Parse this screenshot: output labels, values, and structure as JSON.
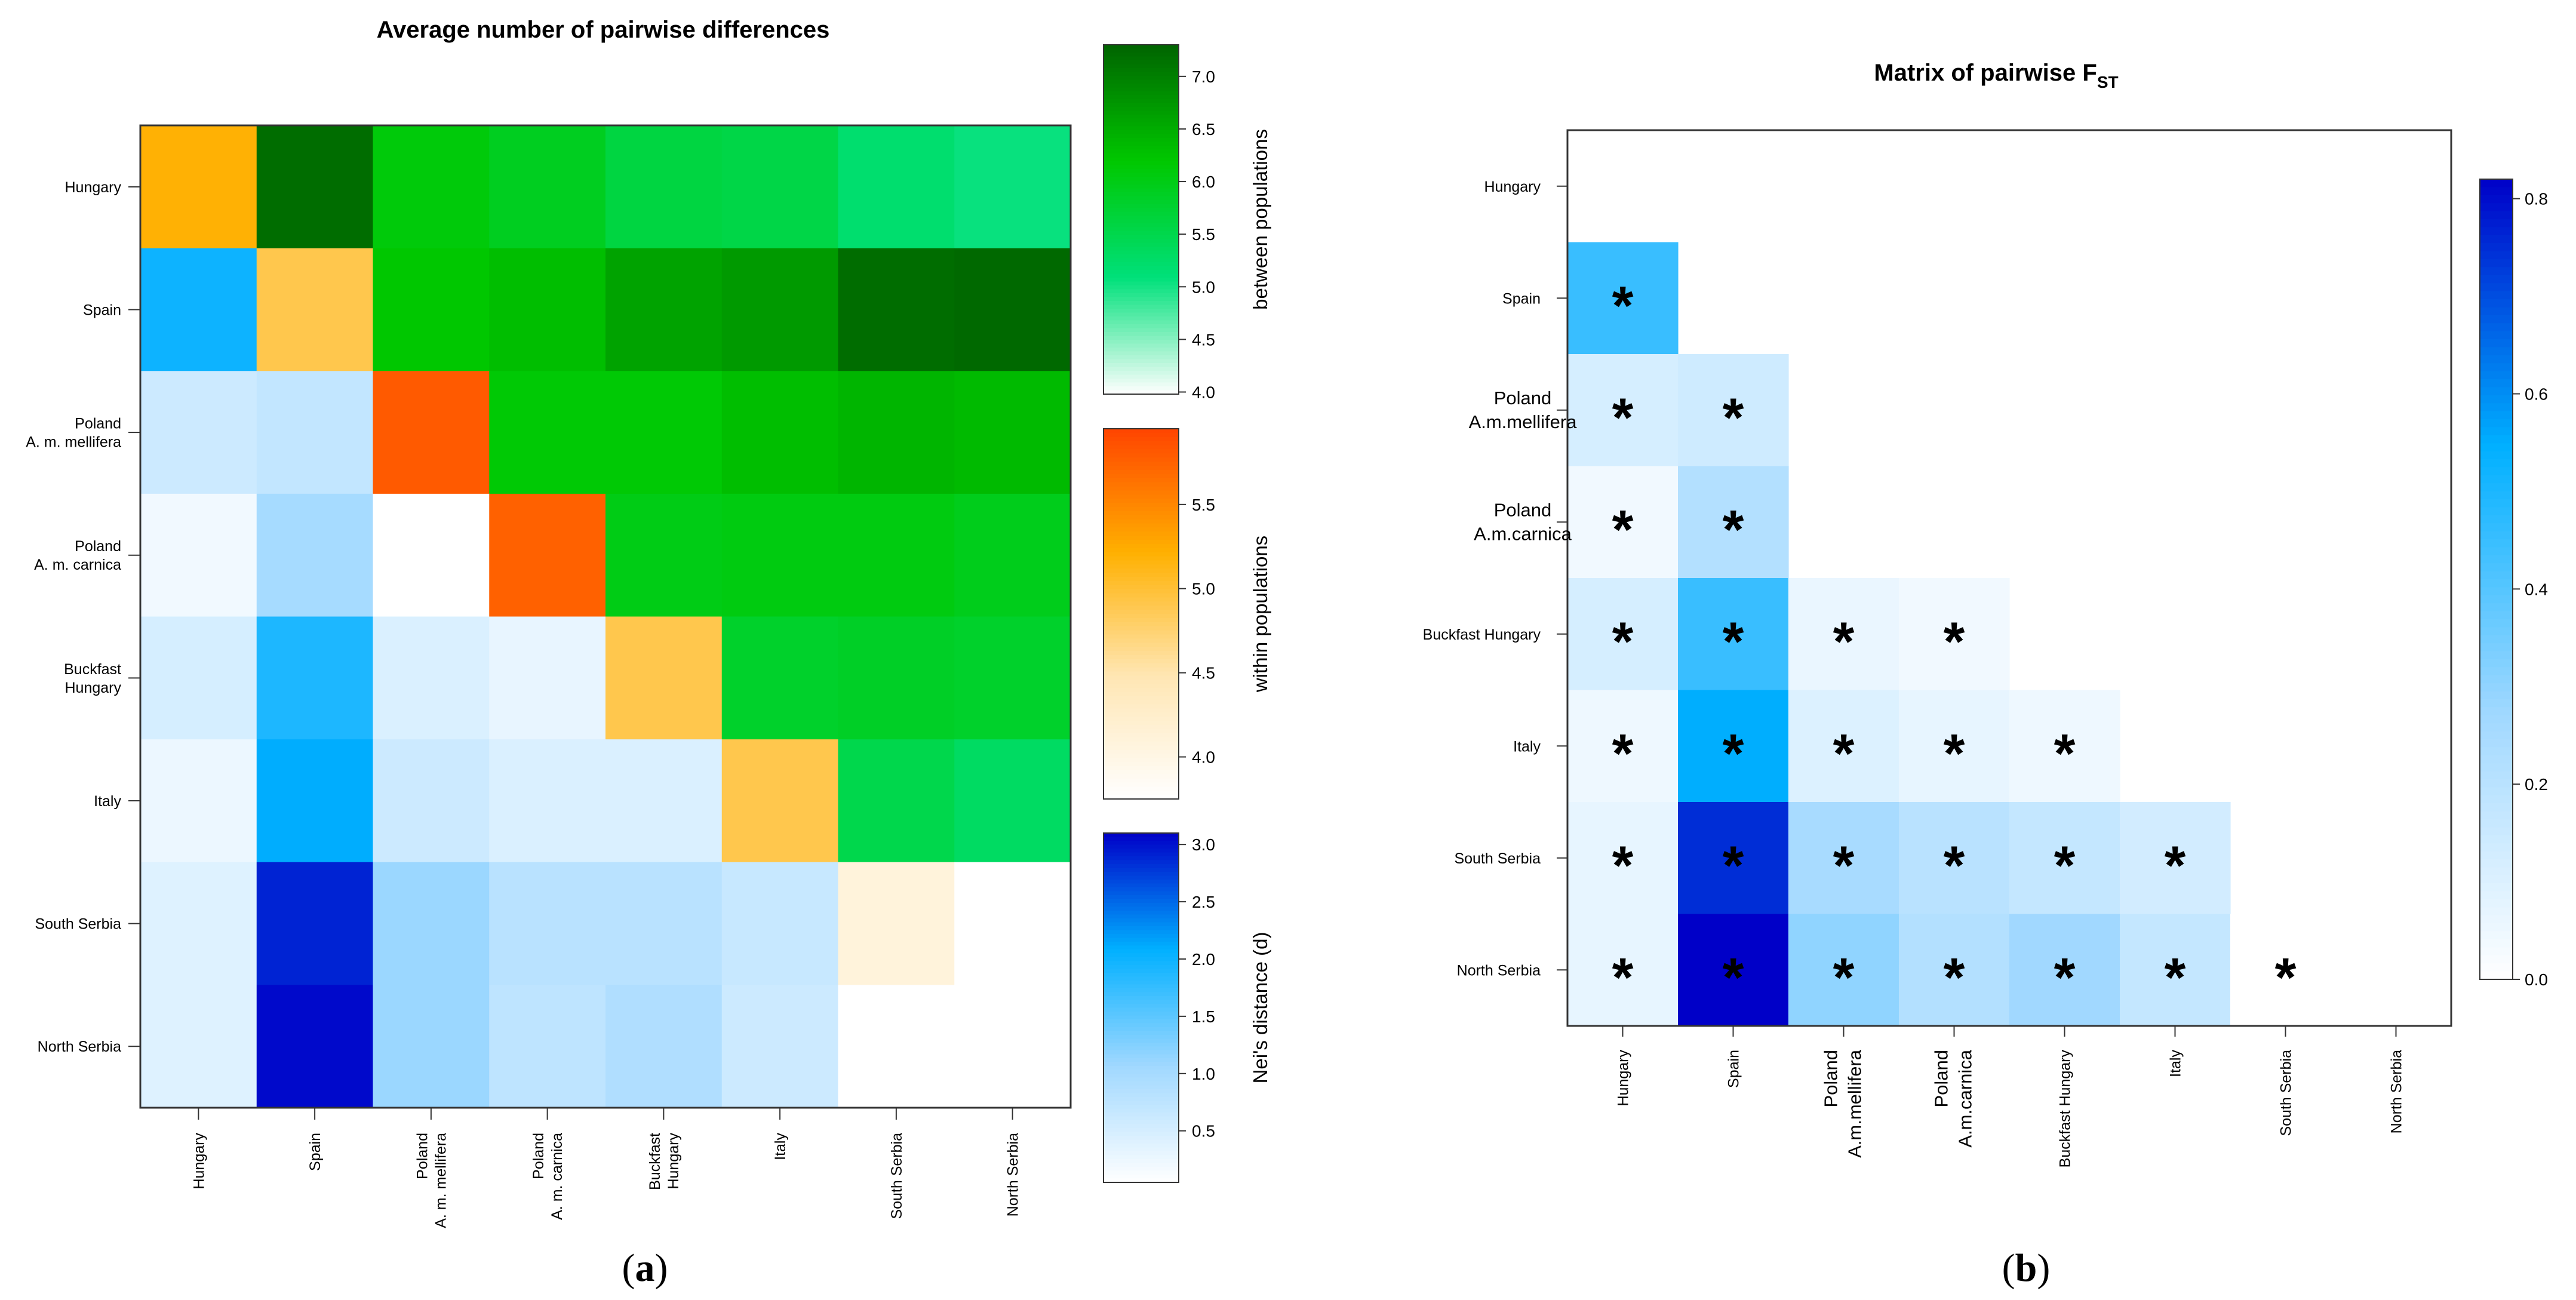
{
  "panel_a": {
    "label_open": "(",
    "label_letter": "a",
    "label_close": ")",
    "title": "Average number of pairwise differences",
    "rows": [
      "Hungary",
      "Spain",
      "Poland\nA. m. mellifera",
      "Poland\nA. m. carnica",
      "Buckfast\nHungary",
      "Italy",
      "South Serbia",
      "North Serbia"
    ],
    "cols": [
      "Hungary",
      "Spain",
      "Poland\nA. m. mellifera",
      "Poland\nA. m. carnica",
      "Buckfast\nHungary",
      "Italy",
      "South Serbia",
      "North Serbia"
    ],
    "legends": [
      {
        "title": "between populations",
        "ticks": [
          "4.0",
          "4.5",
          "5.0",
          "5.5",
          "6.0",
          "6.5",
          "7.0"
        ],
        "tick_values": [
          4.0,
          4.5,
          5.0,
          5.5,
          6.0,
          6.5,
          7.0
        ],
        "range": [
          3.98,
          7.3
        ],
        "colors": [
          "#ffffff",
          "#00e07a",
          "#00c800",
          "#006400"
        ]
      },
      {
        "title": "within populations",
        "ticks": [
          "4.0",
          "4.5",
          "5.0",
          "5.5"
        ],
        "tick_values": [
          4.0,
          4.5,
          5.0,
          5.5
        ],
        "range": [
          3.75,
          5.95
        ],
        "colors": [
          "#ffffff",
          "#ffe6b3",
          "#ffb000",
          "#ff4400"
        ]
      },
      {
        "title": "Nei's distance (d)",
        "ticks": [
          "0.5",
          "1.0",
          "1.5",
          "2.0",
          "2.5",
          "3.0"
        ],
        "tick_values": [
          0.5,
          1.0,
          1.5,
          2.0,
          2.5,
          3.0
        ],
        "range": [
          0.05,
          3.1
        ],
        "colors": [
          "#ffffff",
          "#a0d8ff",
          "#00b0ff",
          "#0000c8"
        ]
      }
    ]
  },
  "chart_data": [
    {
      "type": "heatmap",
      "title": "Average number of pairwise differences",
      "categories": [
        "Hungary",
        "Spain",
        "Poland A. m. mellifera",
        "Poland A. m. carnica",
        "Buckfast Hungary",
        "Italy",
        "South Serbia",
        "North Serbia"
      ],
      "upper_triangle": "between populations (average number of pairwise differences)",
      "diagonal": "within populations",
      "lower_triangle": "Nei's distance (d)",
      "values": [
        [
          5.2,
          7.2,
          6.1,
          5.9,
          5.6,
          5.55,
          5.2,
          5.05
        ],
        [
          2.0,
          4.9,
          6.2,
          6.3,
          6.6,
          6.7,
          7.2,
          7.25
        ],
        [
          0.6,
          0.7,
          5.8,
          6.15,
          6.15,
          6.3,
          6.4,
          6.35
        ],
        [
          0.2,
          1.0,
          null,
          5.75,
          6.0,
          6.05,
          6.05,
          5.95
        ],
        [
          0.5,
          1.9,
          0.45,
          0.3,
          4.9,
          5.8,
          5.85,
          5.8
        ],
        [
          0.25,
          2.1,
          0.6,
          0.45,
          0.45,
          4.9,
          5.5,
          5.3
        ],
        [
          0.4,
          2.9,
          1.1,
          0.8,
          0.8,
          0.65,
          4.1,
          null
        ],
        [
          0.4,
          3.05,
          1.1,
          0.75,
          0.9,
          0.6,
          null,
          null
        ]
      ]
    },
    {
      "type": "heatmap",
      "title": "Matrix of pairwise F",
      "title_subscript": "ST",
      "categories": [
        "Hungary",
        "Spain",
        "Poland\nA.m.mellifera",
        "Poland\nA.m.carnica",
        "Buckfast Hungary",
        "Italy",
        "South Serbia",
        "North Serbia"
      ],
      "significance_marker": "*",
      "values": [
        [
          null,
          null,
          null,
          null,
          null,
          null,
          null,
          null
        ],
        [
          0.45,
          null,
          null,
          null,
          null,
          null,
          null,
          null
        ],
        [
          0.12,
          0.14,
          null,
          null,
          null,
          null,
          null,
          null
        ],
        [
          0.04,
          0.22,
          null,
          null,
          null,
          null,
          null,
          null
        ],
        [
          0.12,
          0.45,
          0.06,
          0.04,
          null,
          null,
          null,
          null
        ],
        [
          0.05,
          0.55,
          0.1,
          0.07,
          0.05,
          null,
          null,
          null
        ],
        [
          0.07,
          0.75,
          0.25,
          0.2,
          0.17,
          0.13,
          null,
          null
        ],
        [
          0.07,
          0.82,
          0.3,
          0.22,
          0.27,
          0.17,
          0.0,
          null
        ]
      ],
      "significant": [
        [
          false,
          false,
          false,
          false,
          false,
          false,
          false,
          false
        ],
        [
          true,
          false,
          false,
          false,
          false,
          false,
          false,
          false
        ],
        [
          true,
          true,
          false,
          false,
          false,
          false,
          false,
          false
        ],
        [
          true,
          true,
          false,
          false,
          false,
          false,
          false,
          false
        ],
        [
          true,
          true,
          true,
          true,
          false,
          false,
          false,
          false
        ],
        [
          true,
          true,
          true,
          true,
          true,
          false,
          false,
          false
        ],
        [
          true,
          true,
          true,
          true,
          true,
          true,
          false,
          false
        ],
        [
          true,
          true,
          true,
          true,
          true,
          true,
          true,
          false
        ]
      ],
      "colorbar": {
        "ticks": [
          "0.0",
          "0.2",
          "0.4",
          "0.6",
          "0.8"
        ],
        "tick_values": [
          0.0,
          0.2,
          0.4,
          0.6,
          0.8
        ],
        "range": [
          0.0,
          0.82
        ],
        "colors": [
          "#ffffff",
          "#a0d8ff",
          "#00b0ff",
          "#0000c8"
        ]
      }
    }
  ],
  "panel_b": {
    "label_open": "(",
    "label_letter": "b",
    "label_close": ")",
    "title_main": "Matrix of pairwise F",
    "title_sub": "ST"
  }
}
